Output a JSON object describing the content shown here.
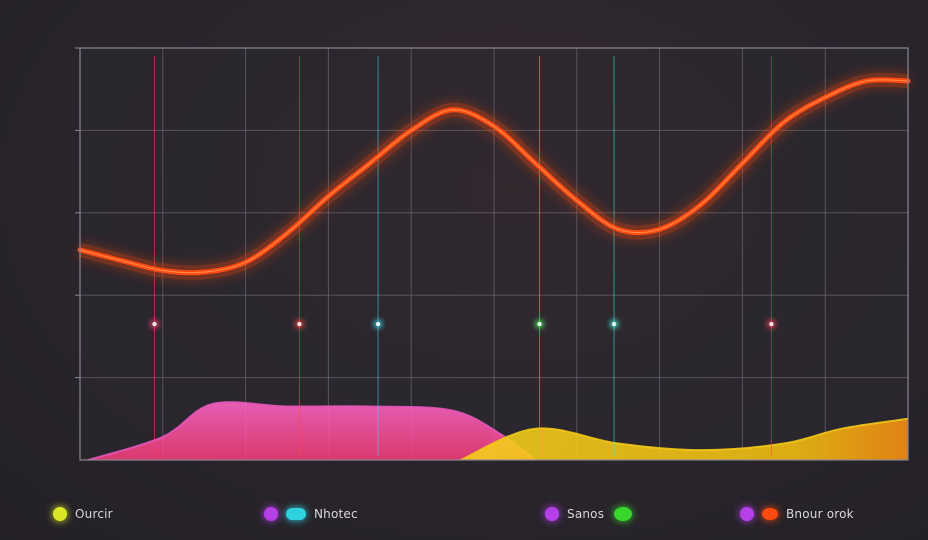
{
  "chart_data": {
    "type": "line",
    "title": "",
    "xlabel": "",
    "ylabel": "",
    "grid": true,
    "xlim": [
      0,
      10
    ],
    "ylim": [
      0,
      5
    ],
    "yticks": [
      "",
      "",
      "",
      "",
      ""
    ],
    "series": [
      {
        "name": "",
        "kind": "line",
        "color": "#ff4a10",
        "x": [
          0,
          0.5,
          1,
          1.5,
          2,
          2.5,
          3,
          3.5,
          4,
          4.5,
          5,
          5.5,
          6,
          6.5,
          7,
          7.5,
          8,
          8.5,
          9,
          9.5,
          10
        ],
        "y": [
          2.55,
          2.42,
          2.3,
          2.28,
          2.4,
          2.75,
          3.2,
          3.6,
          4.0,
          4.25,
          4.05,
          3.6,
          3.15,
          2.8,
          2.8,
          3.1,
          3.6,
          4.1,
          4.4,
          4.6,
          4.6
        ]
      },
      {
        "name": "",
        "kind": "area",
        "color": "#e455b8",
        "x": [
          0.1,
          1,
          1.6,
          2.5,
          3.5,
          4.5,
          5.1,
          5.5
        ],
        "y": [
          0,
          0.28,
          0.68,
          0.65,
          0.65,
          0.6,
          0.3,
          0
        ]
      },
      {
        "name": "",
        "kind": "area",
        "color": "#f2c818",
        "x": [
          4.6,
          5.5,
          6.5,
          7.5,
          8.5,
          9.2,
          10
        ],
        "y": [
          0,
          0.38,
          0.2,
          0.12,
          0.2,
          0.38,
          0.5
        ]
      }
    ],
    "spikes": [
      {
        "x": 0.9,
        "color": "#ff3d6a"
      },
      {
        "x": 2.65,
        "color": "#ff4a3a"
      },
      {
        "x": 3.6,
        "color": "#35e0f0"
      },
      {
        "x": 5.55,
        "color": "#4cf060"
      },
      {
        "x": 6.45,
        "color": "#40f0d8"
      },
      {
        "x": 8.35,
        "color": "#ff3d5a"
      }
    ],
    "legend": {
      "placement": "bottom",
      "entries": [
        {
          "label": "Ourcir",
          "colors": [
            "#d9e826"
          ]
        },
        {
          "label": "Nhotec",
          "colors": [
            "#b640e8",
            "#2ed2e0"
          ]
        },
        {
          "label": "Sanos",
          "colors": [
            "#b640e8",
            "#39d62e"
          ]
        },
        {
          "label": "Bnour orok",
          "colors": [
            "#b640e8",
            "#ff4a10"
          ]
        }
      ]
    }
  }
}
